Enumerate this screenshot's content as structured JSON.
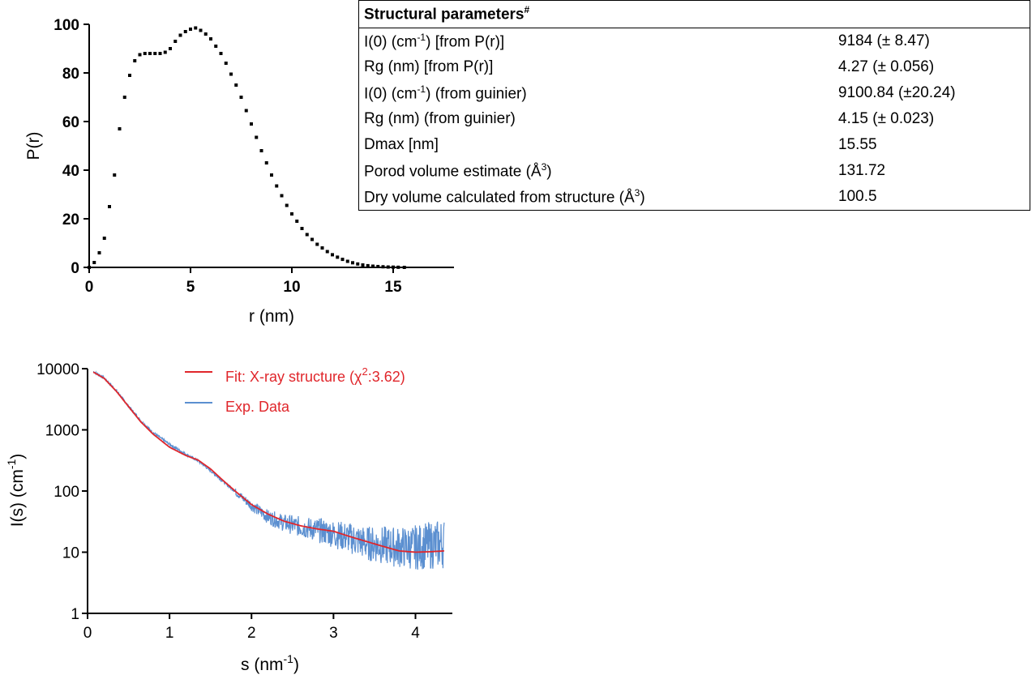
{
  "chart_data": [
    {
      "type": "scatter",
      "title": "",
      "xlabel": "r (nm)",
      "ylabel": "P(r)",
      "xlim": [
        0,
        18
      ],
      "ylim": [
        0,
        100
      ],
      "xticks": [
        0,
        5,
        10,
        15
      ],
      "yticks": [
        0,
        20,
        40,
        60,
        80,
        100
      ],
      "grid": false,
      "marker": "square",
      "color": "#000000",
      "points": [
        [
          0.0,
          0
        ],
        [
          0.25,
          2
        ],
        [
          0.5,
          6
        ],
        [
          0.75,
          12
        ],
        [
          1.0,
          25
        ],
        [
          1.25,
          38
        ],
        [
          1.5,
          57
        ],
        [
          1.75,
          70
        ],
        [
          2.0,
          79
        ],
        [
          2.25,
          85
        ],
        [
          2.5,
          87.5
        ],
        [
          2.75,
          88
        ],
        [
          3.0,
          88
        ],
        [
          3.25,
          88
        ],
        [
          3.5,
          88
        ],
        [
          3.75,
          88.5
        ],
        [
          4.0,
          90
        ],
        [
          4.25,
          93
        ],
        [
          4.5,
          95.5
        ],
        [
          4.75,
          97
        ],
        [
          5.0,
          98
        ],
        [
          5.25,
          98.5
        ],
        [
          5.5,
          97.5
        ],
        [
          5.75,
          96
        ],
        [
          6.0,
          94
        ],
        [
          6.25,
          91
        ],
        [
          6.5,
          88
        ],
        [
          6.75,
          84
        ],
        [
          7.0,
          79.5
        ],
        [
          7.25,
          75
        ],
        [
          7.5,
          70
        ],
        [
          7.75,
          64.5
        ],
        [
          8.0,
          59
        ],
        [
          8.25,
          53.5
        ],
        [
          8.5,
          48
        ],
        [
          8.75,
          43
        ],
        [
          9.0,
          38
        ],
        [
          9.25,
          33.5
        ],
        [
          9.5,
          29.5
        ],
        [
          9.75,
          25.5
        ],
        [
          10.0,
          22
        ],
        [
          10.25,
          19
        ],
        [
          10.5,
          16
        ],
        [
          10.75,
          13.5
        ],
        [
          11.0,
          11.5
        ],
        [
          11.25,
          9.5
        ],
        [
          11.5,
          8
        ],
        [
          11.75,
          6.5
        ],
        [
          12.0,
          5.2
        ],
        [
          12.25,
          4.2
        ],
        [
          12.5,
          3.3
        ],
        [
          12.75,
          2.5
        ],
        [
          13.0,
          1.9
        ],
        [
          13.25,
          1.4
        ],
        [
          13.5,
          1.0
        ],
        [
          13.75,
          0.7
        ],
        [
          14.0,
          0.5
        ],
        [
          14.25,
          0.35
        ],
        [
          14.5,
          0.25
        ],
        [
          14.75,
          0.15
        ],
        [
          15.0,
          0.1
        ],
        [
          15.25,
          0.05
        ],
        [
          15.55,
          0
        ]
      ]
    },
    {
      "type": "line",
      "title": "",
      "xlabel": "s (nm",
      "xlabel_sup": "-1",
      "xlabel_end": ")",
      "ylabel": "I(s) (cm",
      "ylabel_sup": "-1",
      "ylabel_end": ")",
      "xlim": [
        0,
        4.45
      ],
      "ylim": [
        1,
        10000
      ],
      "yscale": "log",
      "xticks": [
        "0",
        "1",
        "2",
        "3",
        "4"
      ],
      "yticks": [
        "1",
        "10",
        "100",
        "1000",
        "10000"
      ],
      "grid": false,
      "legend_position": "top-right",
      "series": [
        {
          "name": "Fit: X-ray structure (χ",
          "name_sup": "2",
          "name_end": ":3.62)",
          "color": "#e0262b",
          "x": [
            0.07,
            0.2,
            0.35,
            0.5,
            0.65,
            0.8,
            1.0,
            1.2,
            1.35,
            1.5,
            1.65,
            1.8,
            2.0,
            2.2,
            2.4,
            2.6,
            2.8,
            3.0,
            3.2,
            3.4,
            3.6,
            3.8,
            4.0,
            4.2,
            4.35
          ],
          "y": [
            8800,
            7000,
            4300,
            2400,
            1350,
            850,
            520,
            380,
            320,
            230,
            150,
            100,
            60,
            42,
            32,
            27,
            24,
            22,
            18,
            15,
            12.5,
            10.5,
            10,
            10.2,
            10.5
          ]
        },
        {
          "name": "Exp. Data",
          "color": "#5b8fd0",
          "x": [
            0.07,
            0.2,
            0.35,
            0.5,
            0.65,
            0.8,
            1.0,
            1.2,
            1.35,
            1.5,
            1.65,
            1.8,
            2.0,
            2.2,
            2.4,
            2.6,
            2.8,
            3.0,
            3.2,
            3.4,
            3.6,
            3.8,
            4.0,
            4.2,
            4.35
          ],
          "y": [
            9000,
            7100,
            4400,
            2450,
            1400,
            900,
            580,
            400,
            310,
            215,
            145,
            98,
            58,
            38,
            30,
            26,
            23,
            20,
            17,
            14,
            13,
            12,
            12,
            13,
            14
          ]
        }
      ]
    }
  ],
  "table": {
    "title": "Structural parameters",
    "title_sup": "#",
    "rows": [
      {
        "label_pre": "I(0) (cm",
        "label_sup": "-1",
        "label_post": ") [from P(r)]",
        "value": "9184 (± 8.47)"
      },
      {
        "label_pre": "Rg (nm) [from P(r)]",
        "label_sup": "",
        "label_post": "",
        "value": "4.27 (± 0.056)"
      },
      {
        "label_pre": "I(0) (cm",
        "label_sup": "-1",
        "label_post": ") (from guinier)",
        "value": "9100.84 (±20.24)"
      },
      {
        "label_pre": "Rg (nm) (from guinier)",
        "label_sup": "",
        "label_post": "",
        "value": "4.15 (± 0.023)"
      },
      {
        "label_pre": "Dmax [nm]",
        "label_sup": "",
        "label_post": "",
        "value": "15.55"
      },
      {
        "label_pre": "Porod volume estimate (Å",
        "label_sup": "3",
        "label_post": ")",
        "value": "131.72"
      },
      {
        "label_pre": "Dry volume calculated from structure (Å",
        "label_sup": "3",
        "label_post": ")",
        "value": "100.5"
      }
    ]
  }
}
